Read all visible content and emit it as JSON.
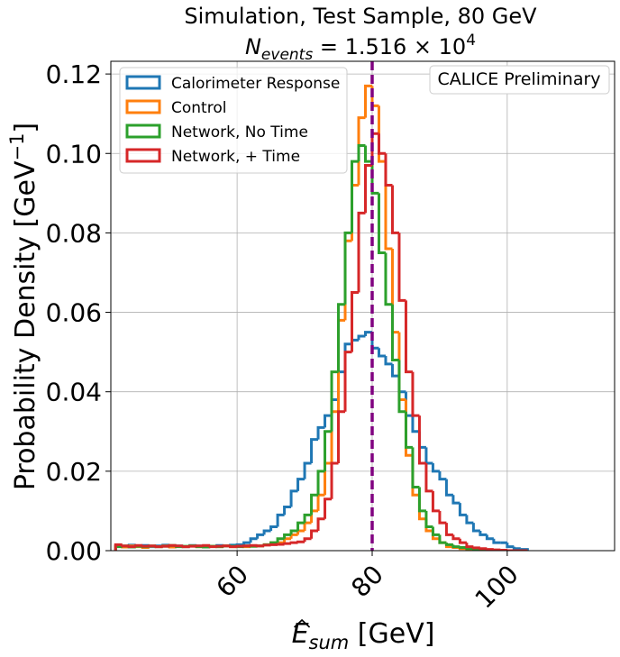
{
  "chart_data": {
    "type": "step_histogram",
    "title": "Simulation, Test Sample, 80 GeV",
    "subtitle": [
      "N",
      "events",
      " = 1.516 × 10",
      "4"
    ],
    "xlabel": [
      "E",
      "sum",
      " [GeV]"
    ],
    "ylabel": [
      "Probability Density [GeV",
      "−1",
      "]"
    ],
    "annotation": "CALICE Preliminary",
    "xlim": [
      41.3,
      115.9
    ],
    "ylim": [
      0,
      0.1232
    ],
    "xticks": [
      60,
      80,
      100
    ],
    "yticks": [
      {
        "value": 0,
        "label": "0.00"
      },
      0.02,
      0.04,
      0.06,
      0.08,
      {
        "value": 0.1,
        "label": "0.10"
      },
      0.12
    ],
    "grid": true,
    "legend": "upper left",
    "vline": 80,
    "vline_color": "#800080",
    "bins": [
      42,
      43,
      44,
      45,
      46,
      47,
      48,
      49,
      50,
      51,
      52,
      53,
      54,
      55,
      56,
      57,
      58,
      59,
      60,
      61,
      62,
      63,
      64,
      65,
      66,
      67,
      68,
      69,
      70,
      71,
      72,
      73,
      74,
      75,
      76,
      77,
      78,
      79,
      80,
      81,
      82,
      83,
      84,
      85,
      86,
      87,
      88,
      89,
      90,
      91,
      92,
      93,
      94,
      95,
      96,
      97,
      98,
      99,
      100,
      101,
      102,
      103
    ],
    "series": [
      {
        "name": "Calorimeter Response",
        "color": "#1f77b4",
        "values": [
          0.0012,
          0.001,
          0.0014,
          0.0011,
          0.0013,
          0.001,
          0.0012,
          0.0014,
          0.0011,
          0.0012,
          0.001,
          0.0013,
          0.0012,
          0.001,
          0.0011,
          0.0013,
          0.0012,
          0.0014,
          0.0015,
          0.002,
          0.003,
          0.004,
          0.005,
          0.006,
          0.009,
          0.011,
          0.015,
          0.018,
          0.022,
          0.028,
          0.031,
          0.034,
          0.038,
          0.045,
          0.052,
          0.053,
          0.054,
          0.055,
          0.051,
          0.049,
          0.047,
          0.044,
          0.04,
          0.034,
          0.03,
          0.026,
          0.022,
          0.02,
          0.018,
          0.014,
          0.012,
          0.009,
          0.007,
          0.005,
          0.004,
          0.003,
          0.002,
          0.002,
          0.001,
          0.0005,
          0.0003
        ]
      },
      {
        "name": "Control",
        "color": "#ff7f0e",
        "values": [
          0.0011,
          0.0009,
          0.0012,
          0.001,
          0.0008,
          0.0011,
          0.001,
          0.0012,
          0.0009,
          0.0011,
          0.001,
          0.0012,
          0.001,
          0.0009,
          0.0011,
          0.001,
          0.0012,
          0.001,
          0.0011,
          0.001,
          0.0011,
          0.0012,
          0.0015,
          0.002,
          0.002,
          0.003,
          0.004,
          0.005,
          0.007,
          0.01,
          0.014,
          0.022,
          0.035,
          0.058,
          0.078,
          0.092,
          0.109,
          0.117,
          0.112,
          0.098,
          0.076,
          0.055,
          0.038,
          0.024,
          0.014,
          0.008,
          0.005,
          0.003,
          0.002,
          0.001,
          0.0008,
          0.0005,
          0.0003,
          0.0002,
          0.0001,
          0,
          0,
          0,
          0,
          0,
          0
        ]
      },
      {
        "name": "Network, No Time",
        "color": "#2ca02c",
        "values": [
          0.001,
          0.0012,
          0.0009,
          0.0011,
          0.001,
          0.0012,
          0.001,
          0.0011,
          0.0013,
          0.001,
          0.0011,
          0.0012,
          0.001,
          0.0009,
          0.0011,
          0.001,
          0.0012,
          0.0011,
          0.001,
          0.0012,
          0.0011,
          0.0012,
          0.0015,
          0.002,
          0.003,
          0.004,
          0.005,
          0.007,
          0.009,
          0.014,
          0.02,
          0.03,
          0.045,
          0.062,
          0.08,
          0.098,
          0.102,
          0.098,
          0.09,
          0.075,
          0.062,
          0.048,
          0.035,
          0.026,
          0.016,
          0.01,
          0.006,
          0.004,
          0.002,
          0.0015,
          0.001,
          0.0008,
          0.0005,
          0.0003,
          0.0002,
          0.0001,
          0,
          0,
          0,
          0,
          0
        ]
      },
      {
        "name": "Network, + Time",
        "color": "#d62728",
        "values": [
          0.0015,
          0.0012,
          0.001,
          0.0013,
          0.0011,
          0.0012,
          0.001,
          0.0011,
          0.0013,
          0.0012,
          0.001,
          0.0011,
          0.0012,
          0.0013,
          0.001,
          0.0011,
          0.0012,
          0.001,
          0.0011,
          0.0012,
          0.0013,
          0.0012,
          0.0014,
          0.0015,
          0.0016,
          0.0018,
          0.002,
          0.0022,
          0.003,
          0.005,
          0.008,
          0.013,
          0.022,
          0.035,
          0.05,
          0.065,
          0.085,
          0.097,
          0.105,
          0.1,
          0.092,
          0.08,
          0.063,
          0.045,
          0.034,
          0.022,
          0.015,
          0.01,
          0.007,
          0.004,
          0.003,
          0.002,
          0.001,
          0.0007,
          0.0005,
          0.0003,
          0.0002,
          0.0001,
          0,
          0,
          0
        ]
      }
    ]
  }
}
